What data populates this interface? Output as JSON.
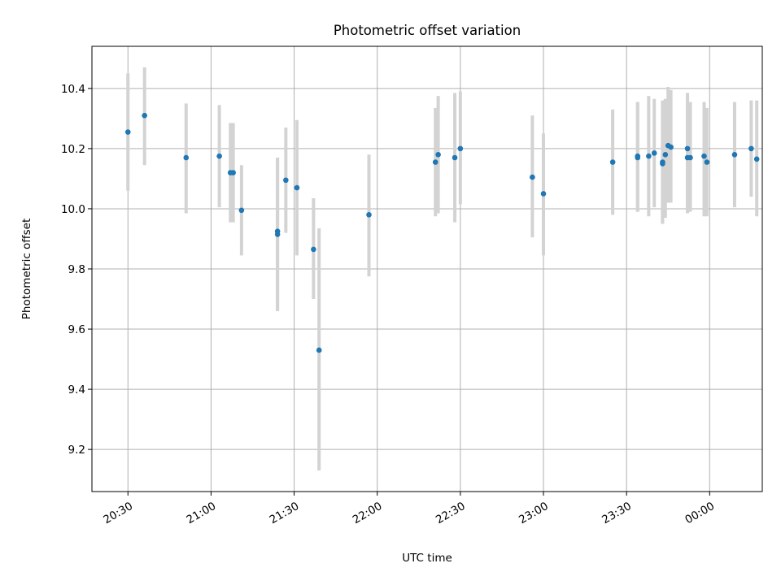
{
  "chart_data": {
    "type": "scatter",
    "title": "Photometric offset variation",
    "xlabel": "UTC time",
    "ylabel": "Photometric offset",
    "x_axis_type": "time",
    "xlim": [
      "20:17",
      "00:19"
    ],
    "ylim": [
      9.06,
      10.54
    ],
    "x_ticks": [
      "20:30",
      "21:00",
      "21:30",
      "22:00",
      "22:30",
      "23:00",
      "23:30",
      "00:00"
    ],
    "y_ticks": [
      "9.2",
      "9.4",
      "9.6",
      "9.8",
      "10.0",
      "10.2",
      "10.4"
    ],
    "grid": true,
    "colors": {
      "points": "#1f77b4",
      "error_bars": "#d3d3d3",
      "grid": "#b0b0b0"
    },
    "points": [
      {
        "x": "20:30",
        "y": 10.255,
        "ylo": 10.06,
        "yhi": 10.45
      },
      {
        "x": "20:36",
        "y": 10.31,
        "ylo": 10.145,
        "yhi": 10.47
      },
      {
        "x": "20:51",
        "y": 10.17,
        "ylo": 9.985,
        "yhi": 10.35
      },
      {
        "x": "21:03",
        "y": 10.175,
        "ylo": 10.005,
        "yhi": 10.345
      },
      {
        "x": "21:07",
        "y": 10.12,
        "ylo": 9.955,
        "yhi": 10.285
      },
      {
        "x": "21:08",
        "y": 10.12,
        "ylo": 9.955,
        "yhi": 10.285
      },
      {
        "x": "21:11",
        "y": 9.995,
        "ylo": 9.845,
        "yhi": 10.145
      },
      {
        "x": "21:24",
        "y": 9.925,
        "ylo": 9.66,
        "yhi": 10.17
      },
      {
        "x": "21:24",
        "y": 9.915,
        "ylo": 9.66,
        "yhi": 10.17
      },
      {
        "x": "21:27",
        "y": 10.095,
        "ylo": 9.92,
        "yhi": 10.27
      },
      {
        "x": "21:31",
        "y": 10.07,
        "ylo": 9.845,
        "yhi": 10.295
      },
      {
        "x": "21:37",
        "y": 9.865,
        "ylo": 9.7,
        "yhi": 10.035
      },
      {
        "x": "21:39",
        "y": 9.53,
        "ylo": 9.13,
        "yhi": 9.935
      },
      {
        "x": "21:57",
        "y": 9.98,
        "ylo": 9.775,
        "yhi": 10.18
      },
      {
        "x": "22:21",
        "y": 10.155,
        "ylo": 9.975,
        "yhi": 10.335
      },
      {
        "x": "22:22",
        "y": 10.18,
        "ylo": 9.985,
        "yhi": 10.375
      },
      {
        "x": "22:28",
        "y": 10.17,
        "ylo": 9.955,
        "yhi": 10.385
      },
      {
        "x": "22:30",
        "y": 10.2,
        "ylo": 10.015,
        "yhi": 10.39
      },
      {
        "x": "22:56",
        "y": 10.105,
        "ylo": 9.905,
        "yhi": 10.31
      },
      {
        "x": "23:00",
        "y": 10.05,
        "ylo": 9.845,
        "yhi": 10.25
      },
      {
        "x": "23:25",
        "y": 10.155,
        "ylo": 9.98,
        "yhi": 10.33
      },
      {
        "x": "23:34",
        "y": 10.175,
        "ylo": 9.99,
        "yhi": 10.355
      },
      {
        "x": "23:34",
        "y": 10.17,
        "ylo": 9.99,
        "yhi": 10.355
      },
      {
        "x": "23:38",
        "y": 10.175,
        "ylo": 9.975,
        "yhi": 10.375
      },
      {
        "x": "23:40",
        "y": 10.185,
        "ylo": 10.005,
        "yhi": 10.365
      },
      {
        "x": "23:43",
        "y": 10.15,
        "ylo": 9.95,
        "yhi": 10.355
      },
      {
        "x": "23:43",
        "y": 10.155,
        "ylo": 9.955,
        "yhi": 10.36
      },
      {
        "x": "23:44",
        "y": 10.18,
        "ylo": 9.97,
        "yhi": 10.365
      },
      {
        "x": "23:45",
        "y": 10.21,
        "ylo": 10.02,
        "yhi": 10.405
      },
      {
        "x": "23:46",
        "y": 10.205,
        "ylo": 10.02,
        "yhi": 10.395
      },
      {
        "x": "23:52",
        "y": 10.2,
        "ylo": 10.0,
        "yhi": 10.385
      },
      {
        "x": "23:52",
        "y": 10.17,
        "ylo": 9.985,
        "yhi": 10.355
      },
      {
        "x": "23:53",
        "y": 10.17,
        "ylo": 9.99,
        "yhi": 10.355
      },
      {
        "x": "23:58",
        "y": 10.175,
        "ylo": 9.975,
        "yhi": 10.355
      },
      {
        "x": "23:59",
        "y": 10.155,
        "ylo": 9.975,
        "yhi": 10.335
      },
      {
        "x": "00:09",
        "y": 10.18,
        "ylo": 10.005,
        "yhi": 10.355
      },
      {
        "x": "00:15",
        "y": 10.2,
        "ylo": 10.04,
        "yhi": 10.36
      },
      {
        "x": "00:17",
        "y": 10.165,
        "ylo": 9.975,
        "yhi": 10.36
      }
    ]
  }
}
